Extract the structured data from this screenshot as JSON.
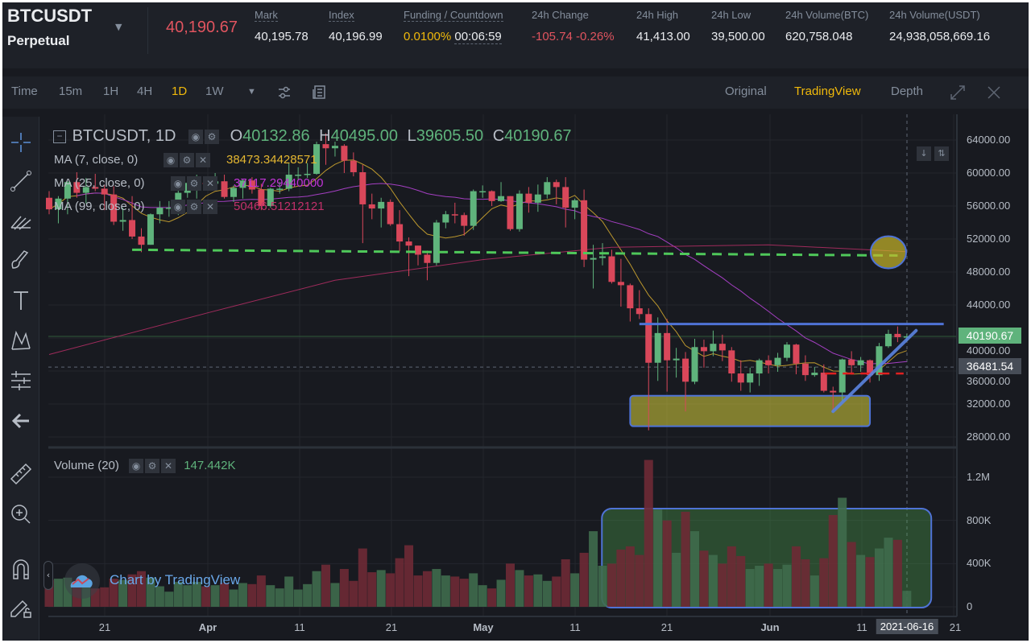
{
  "header": {
    "symbol": "BTCUSDT",
    "contract": "Perpetual",
    "last_price": "40,190.67",
    "stats": [
      {
        "label": "Mark",
        "value": "40,195.78"
      },
      {
        "label": "Index",
        "value": "40,196.99"
      },
      {
        "label": "Funding / Countdown",
        "value": "0.0100%",
        "value2": "00:06:59"
      },
      {
        "label": "24h Change",
        "value": "-105.74 -0.26%"
      },
      {
        "label": "24h High",
        "value": "41,413.00"
      },
      {
        "label": "24h Low",
        "value": "39,500.00"
      },
      {
        "label": "24h Volume(BTC)",
        "value": "620,758.048"
      },
      {
        "label": "24h Volume(USDT)",
        "value": "24,938,058,669.16"
      }
    ]
  },
  "toolbar": {
    "intervals": [
      "Time",
      "15m",
      "1H",
      "4H",
      "1D",
      "1W"
    ],
    "active": "1D",
    "views": [
      "Original",
      "TradingView",
      "Depth"
    ],
    "active_view": "TradingView"
  },
  "colors": {
    "up": "#5fb37c",
    "down": "#d9475a",
    "ma7": "#e5b731",
    "ma25": "#a43fc2",
    "ma99": "#c2306a",
    "accent": "#f0b90b"
  },
  "legend": {
    "title": "BTCUSDT, 1D",
    "o_label": "O",
    "o": "40132.86",
    "h_label": "H",
    "h": "40495.00",
    "l_label": "L",
    "l": "39605.50",
    "c_label": "C",
    "c": "40190.67",
    "ma7_label": "MA (7, close, 0)",
    "ma7": "38473.34428571",
    "ma25_label": "MA (25, close, 0)",
    "ma25": "37117.29440000",
    "ma99_label": "MA (99, close, 0)",
    "ma99": "50466.51212121",
    "volume_label": "Volume (20)",
    "volume": "147.442K"
  },
  "watermark": "Chart by TradingView",
  "chart_data": {
    "type": "candlestick",
    "price_ticks": [
      "64000.00",
      "60000.00",
      "56000.00",
      "52000.00",
      "48000.00",
      "44000.00",
      "40000.00",
      "36000.00",
      "32000.00",
      "28000.00"
    ],
    "price_range": [
      28000,
      64000
    ],
    "volume_ticks": [
      "1.2M",
      "800K",
      "400K",
      "0"
    ],
    "volume_range_k": [
      0,
      1200
    ],
    "x_ticks": [
      "21",
      "Apr",
      "11",
      "21",
      "May",
      "11",
      "21",
      "Jun",
      "11",
      "2021-06-16",
      "21"
    ],
    "last_price_label": "40190.67",
    "crosshair_price_label": "36481.54",
    "crosshair_price": 36481.54,
    "candles": [
      [
        "2021-03-15",
        57000,
        57800,
        55000,
        55600,
        250
      ],
      [
        "2021-03-16",
        55600,
        57200,
        53900,
        56900,
        260
      ],
      [
        "2021-03-17",
        56900,
        59000,
        55000,
        58900,
        270
      ],
      [
        "2021-03-18",
        58900,
        60100,
        57000,
        57600,
        230
      ],
      [
        "2021-03-19",
        57600,
        59400,
        56300,
        58300,
        200
      ],
      [
        "2021-03-20",
        58300,
        59900,
        57800,
        58100,
        170
      ],
      [
        "2021-03-21",
        58100,
        58600,
        55500,
        57400,
        180
      ],
      [
        "2021-03-22",
        57400,
        58400,
        53700,
        54100,
        260
      ],
      [
        "2021-03-23",
        54100,
        55800,
        53000,
        54300,
        250
      ],
      [
        "2021-03-24",
        54300,
        57200,
        52000,
        52300,
        300
      ],
      [
        "2021-03-25",
        52300,
        53300,
        50400,
        51300,
        330
      ],
      [
        "2021-03-26",
        51300,
        55100,
        51300,
        55000,
        270
      ],
      [
        "2021-03-27",
        55000,
        56600,
        53900,
        55800,
        190
      ],
      [
        "2021-03-28",
        55800,
        56600,
        54700,
        55800,
        140
      ],
      [
        "2021-03-29",
        55800,
        58400,
        54900,
        57600,
        230
      ],
      [
        "2021-03-30",
        57600,
        59400,
        57000,
        58800,
        200
      ],
      [
        "2021-03-31",
        58800,
        59800,
        56900,
        58800,
        230
      ],
      [
        "2021-04-01",
        58800,
        59500,
        57900,
        58700,
        190
      ],
      [
        "2021-04-02",
        58700,
        60000,
        58500,
        59000,
        200
      ],
      [
        "2021-04-03",
        59000,
        59800,
        56900,
        57100,
        220
      ],
      [
        "2021-04-04",
        57100,
        58500,
        56500,
        58200,
        160
      ],
      [
        "2021-04-05",
        58200,
        59300,
        56900,
        59100,
        220
      ],
      [
        "2021-04-06",
        59100,
        59500,
        57500,
        58000,
        210
      ],
      [
        "2021-04-07",
        58000,
        58700,
        55500,
        56000,
        290
      ],
      [
        "2021-04-08",
        56000,
        58200,
        55800,
        58100,
        200
      ],
      [
        "2021-04-09",
        58100,
        58900,
        57500,
        58100,
        170
      ],
      [
        "2021-04-10",
        58100,
        61200,
        57800,
        59800,
        280
      ],
      [
        "2021-04-11",
        59800,
        60700,
        59200,
        59800,
        160
      ],
      [
        "2021-04-12",
        59800,
        61200,
        59400,
        59900,
        210
      ],
      [
        "2021-04-13",
        59900,
        63800,
        59800,
        63500,
        330
      ],
      [
        "2021-04-14",
        63500,
        64800,
        61000,
        63000,
        390
      ],
      [
        "2021-04-15",
        63000,
        63800,
        62000,
        63300,
        220
      ],
      [
        "2021-04-16",
        63300,
        63500,
        60000,
        61500,
        350
      ],
      [
        "2021-04-17",
        61500,
        62500,
        59600,
        60100,
        240
      ],
      [
        "2021-04-18",
        60100,
        61000,
        51500,
        56200,
        540
      ],
      [
        "2021-04-19",
        56200,
        57500,
        54400,
        55700,
        320
      ],
      [
        "2021-04-20",
        55700,
        57000,
        53400,
        56500,
        340
      ],
      [
        "2021-04-21",
        56500,
        56800,
        53600,
        53800,
        310
      ],
      [
        "2021-04-22",
        53800,
        55500,
        50500,
        51700,
        450
      ],
      [
        "2021-04-23",
        51700,
        52200,
        47500,
        51200,
        570
      ],
      [
        "2021-04-24",
        51200,
        51200,
        48800,
        50100,
        290
      ],
      [
        "2021-04-25",
        50100,
        50600,
        47000,
        49100,
        330
      ],
      [
        "2021-04-26",
        49100,
        54300,
        48800,
        54000,
        350
      ],
      [
        "2021-04-27",
        54000,
        55400,
        53300,
        55000,
        290
      ],
      [
        "2021-04-28",
        55000,
        56400,
        53900,
        54900,
        280
      ],
      [
        "2021-04-29",
        54900,
        55200,
        52400,
        53600,
        260
      ],
      [
        "2021-04-30",
        53600,
        58000,
        53100,
        57800,
        310
      ],
      [
        "2021-05-01",
        57800,
        58500,
        57000,
        57800,
        200
      ],
      [
        "2021-05-02",
        57800,
        57900,
        56000,
        56600,
        170
      ],
      [
        "2021-05-03",
        56600,
        58900,
        56500,
        57200,
        250
      ],
      [
        "2021-05-04",
        57200,
        57200,
        53000,
        53200,
        400
      ],
      [
        "2021-05-05",
        53200,
        57900,
        52900,
        57500,
        340
      ],
      [
        "2021-05-06",
        57500,
        58300,
        55200,
        56400,
        290
      ],
      [
        "2021-05-07",
        56400,
        58600,
        55300,
        57400,
        300
      ],
      [
        "2021-05-08",
        57400,
        59500,
        56900,
        58900,
        240
      ],
      [
        "2021-05-09",
        58900,
        59200,
        56200,
        58300,
        280
      ],
      [
        "2021-05-10",
        58300,
        59500,
        53400,
        55800,
        440
      ],
      [
        "2021-05-11",
        55800,
        56900,
        54400,
        56700,
        310
      ],
      [
        "2021-05-12",
        56700,
        58000,
        48600,
        49500,
        500
      ],
      [
        "2021-05-13",
        49500,
        51300,
        46000,
        49700,
        700
      ],
      [
        "2021-05-14",
        49700,
        51500,
        48800,
        49900,
        380
      ],
      [
        "2021-05-15",
        49900,
        50700,
        46600,
        46800,
        400
      ],
      [
        "2021-05-16",
        46800,
        49600,
        43800,
        46400,
        530
      ],
      [
        "2021-05-17",
        46400,
        46600,
        42000,
        43600,
        560
      ],
      [
        "2021-05-18",
        43600,
        45800,
        42300,
        42900,
        480
      ],
      [
        "2021-05-19",
        42900,
        43600,
        28800,
        37000,
        1360
      ],
      [
        "2021-05-20",
        37000,
        42500,
        34800,
        40600,
        900
      ],
      [
        "2021-05-21",
        40600,
        42300,
        33500,
        37300,
        800
      ],
      [
        "2021-05-22",
        37300,
        38800,
        35200,
        37500,
        500
      ],
      [
        "2021-05-23",
        37500,
        38300,
        31100,
        34700,
        880
      ],
      [
        "2021-05-24",
        34700,
        39900,
        34400,
        38900,
        700
      ],
      [
        "2021-05-25",
        38900,
        39800,
        36400,
        38400,
        520
      ],
      [
        "2021-05-26",
        38400,
        40900,
        37800,
        39300,
        480
      ],
      [
        "2021-05-27",
        39300,
        40400,
        37200,
        38500,
        400
      ],
      [
        "2021-05-28",
        38500,
        38900,
        34700,
        35700,
        560
      ],
      [
        "2021-05-29",
        35700,
        37300,
        33600,
        34600,
        470
      ],
      [
        "2021-05-30",
        34600,
        36400,
        33400,
        35700,
        350
      ],
      [
        "2021-05-31",
        35700,
        37500,
        34200,
        37300,
        380
      ],
      [
        "2021-06-01",
        37300,
        37900,
        35700,
        36700,
        400
      ],
      [
        "2021-06-02",
        36700,
        38200,
        35900,
        37600,
        350
      ],
      [
        "2021-06-03",
        37600,
        39500,
        37200,
        39200,
        390
      ],
      [
        "2021-06-04",
        39200,
        39300,
        35600,
        36900,
        560
      ],
      [
        "2021-06-05",
        36900,
        37900,
        34800,
        35500,
        440
      ],
      [
        "2021-06-06",
        35500,
        36500,
        35300,
        35800,
        290
      ],
      [
        "2021-06-07",
        35800,
        36800,
        33400,
        33600,
        450
      ],
      [
        "2021-06-08",
        33600,
        34100,
        31100,
        33400,
        850
      ],
      [
        "2021-06-09",
        33400,
        37500,
        32400,
        37400,
        1010
      ],
      [
        "2021-06-10",
        37400,
        38400,
        35800,
        36700,
        600
      ],
      [
        "2021-06-11",
        36700,
        37700,
        35900,
        37300,
        480
      ],
      [
        "2021-06-12",
        37300,
        37400,
        34600,
        35500,
        460
      ],
      [
        "2021-06-13",
        35500,
        39400,
        34800,
        39000,
        540
      ],
      [
        "2021-06-14",
        39000,
        41000,
        38800,
        40500,
        640
      ],
      [
        "2021-06-15",
        40500,
        41400,
        39500,
        40100,
        620
      ],
      [
        "2021-06-16",
        40132.86,
        40495,
        39605.5,
        40190.67,
        147.442
      ]
    ],
    "ma99_samples": [
      [
        "2021-03-15",
        38000
      ],
      [
        "2021-04-01",
        43000
      ],
      [
        "2021-04-15",
        47000
      ],
      [
        "2021-05-01",
        49500
      ],
      [
        "2021-05-15",
        51000
      ],
      [
        "2021-06-01",
        51300
      ],
      [
        "2021-06-16",
        50466.5
      ]
    ],
    "annotations": {
      "support_dashed": {
        "color": "#4fc85a",
        "from": [
          "2021-03-24",
          50700
        ],
        "to": [
          "2021-06-15",
          50000
        ]
      },
      "highlight_circle": {
        "color": "#c8b62a",
        "at": [
          "2021-06-14",
          50000
        ]
      },
      "resistance_line": {
        "color": "#4f73d6",
        "price": 41700,
        "from": "2021-05-18",
        "to": "2021-06-20"
      },
      "trend_line": {
        "color": "#5b84e0",
        "from": [
          "2021-06-08",
          31100
        ],
        "to": [
          "2021-06-17",
          40900
        ]
      },
      "red_dashed": {
        "color": "#e02020",
        "price": 35700,
        "from": "2021-06-08",
        "to": "2021-06-16"
      },
      "yellow_box": {
        "color": "#c8c23a",
        "price_top": 33000,
        "price_bottom": 29300,
        "from": "2021-05-17",
        "to": "2021-06-12"
      },
      "volume_box": {
        "color": "#4fa84f",
        "from": "2021-05-19",
        "to": "2021-06-19"
      }
    }
  }
}
